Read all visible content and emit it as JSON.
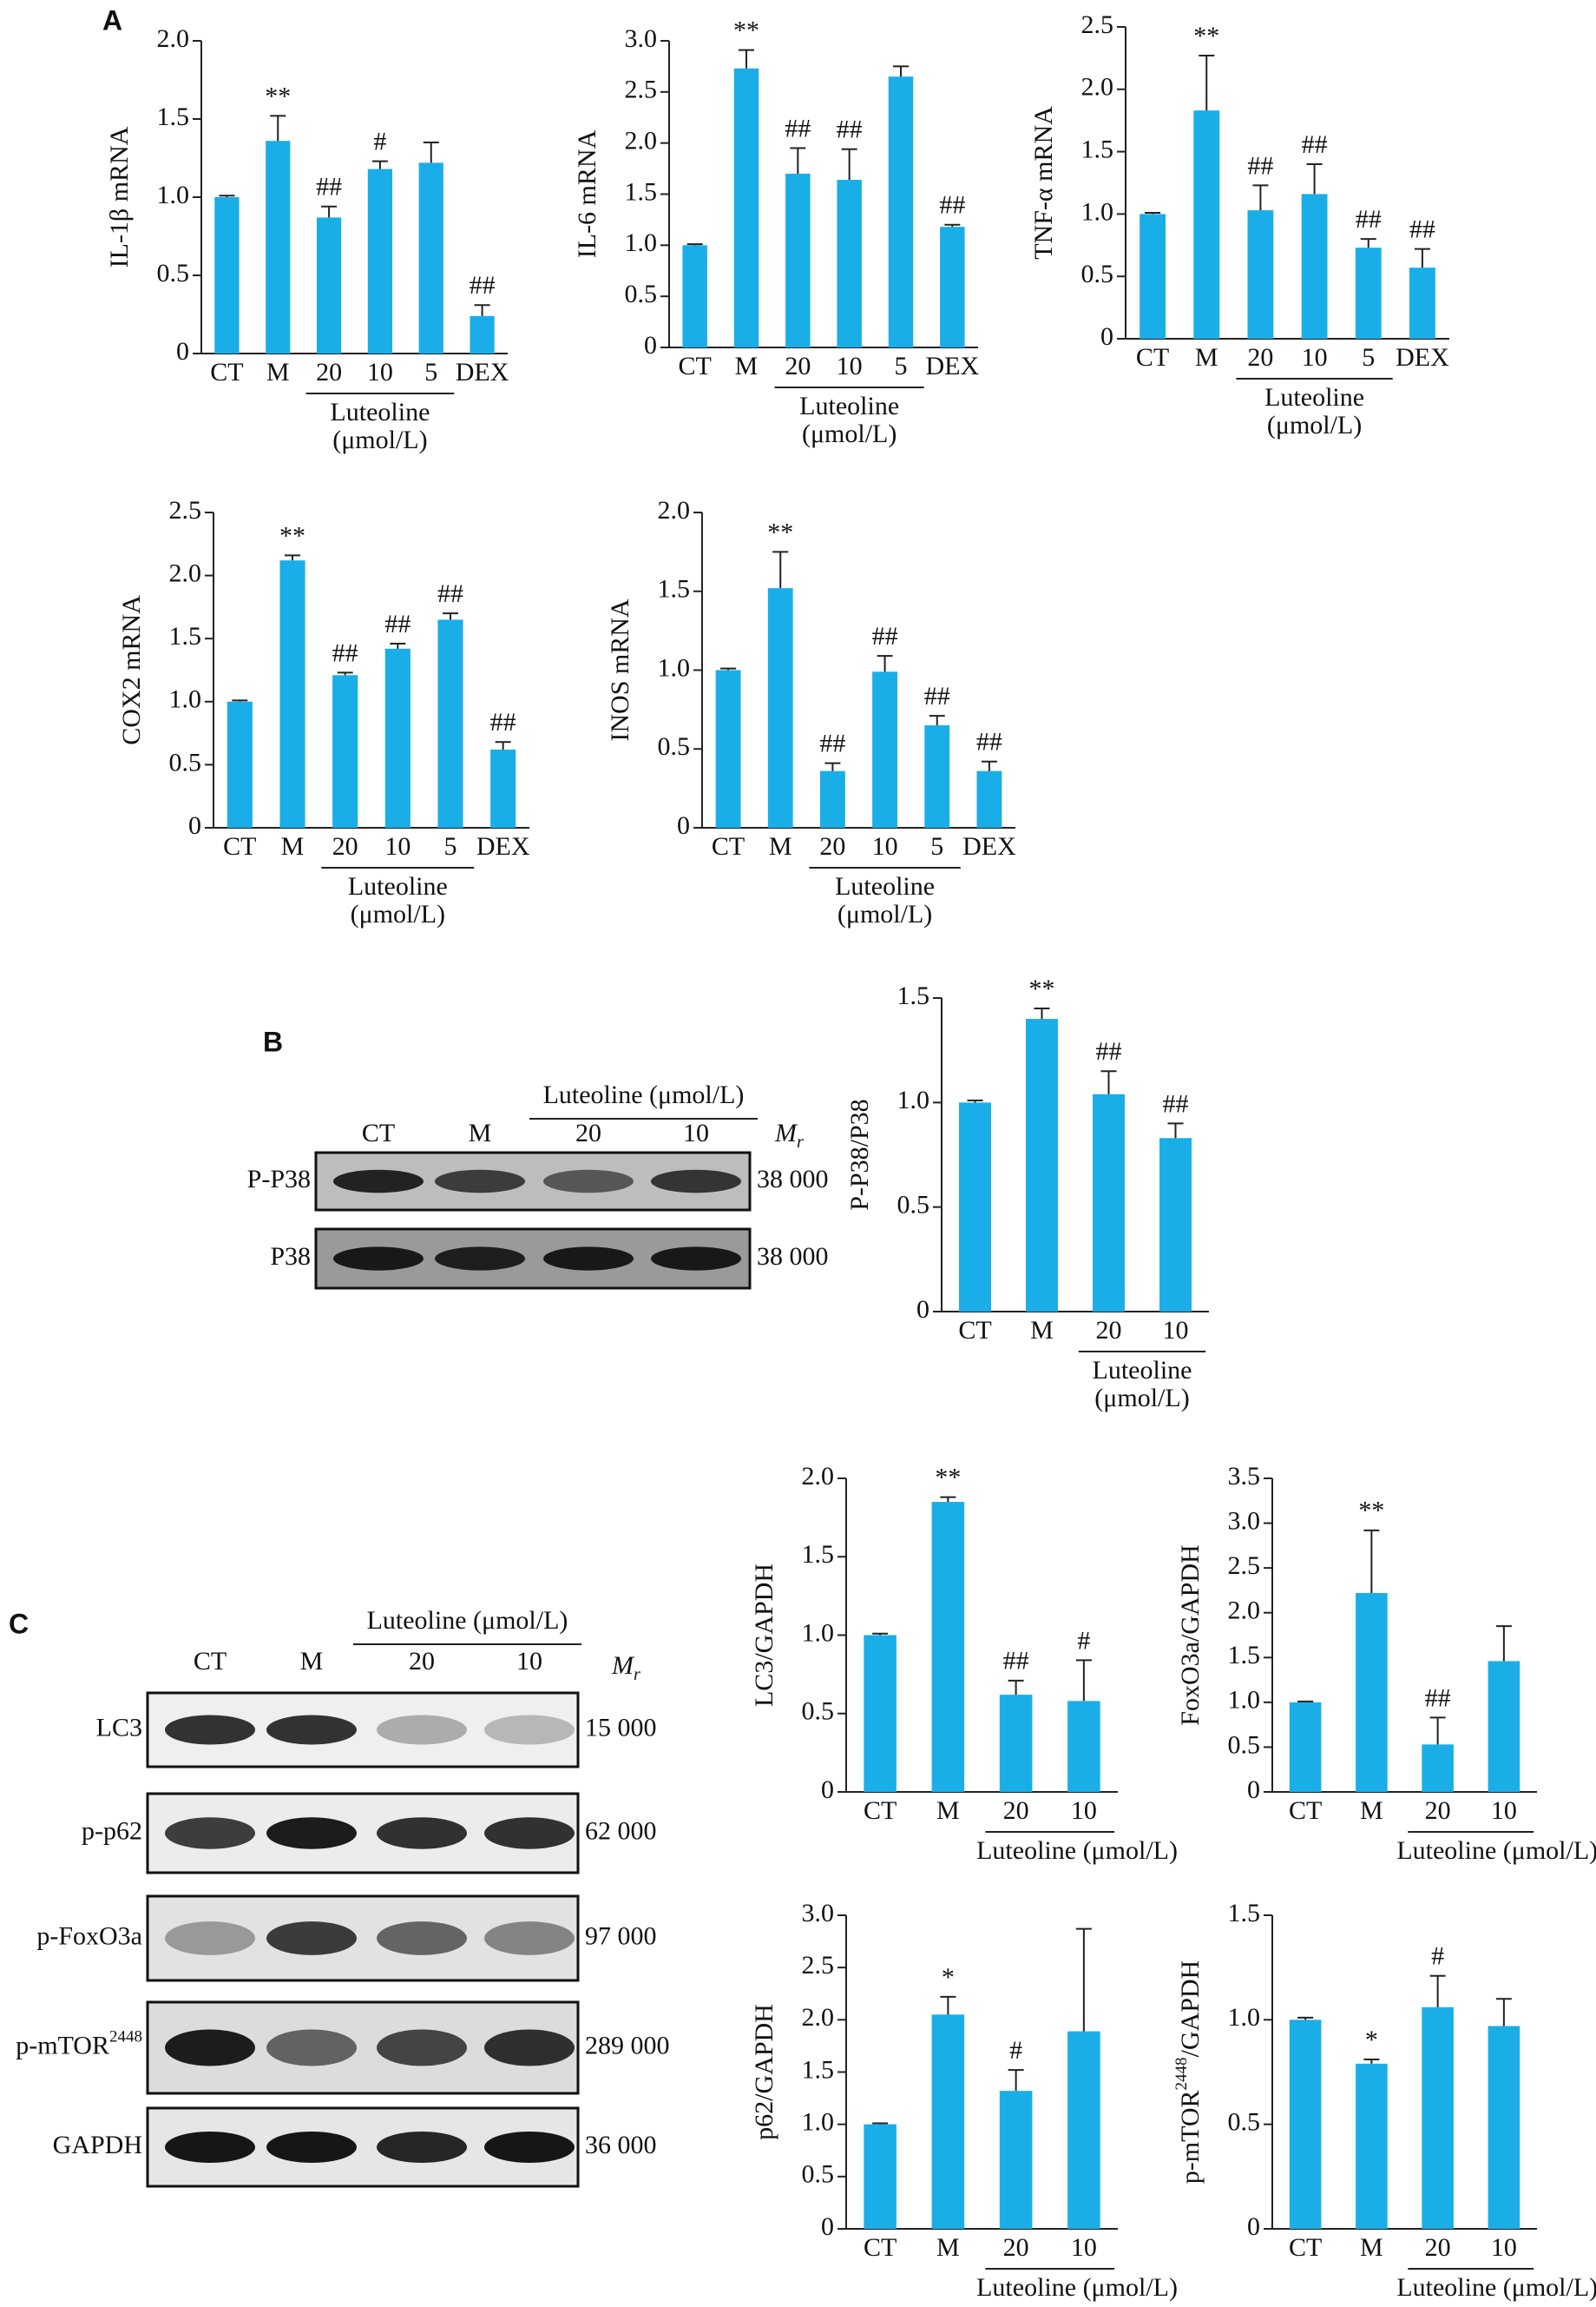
{
  "panels": [
    "A",
    "B",
    "C"
  ],
  "blots": [
    {
      "header": "Luteoline (μmol/L)",
      "lanes": [
        "CT",
        "M",
        "20",
        "10"
      ],
      "mr": "M",
      "mr_sub": "r",
      "rows": [
        {
          "label": "P-P38",
          "mw": "38 000"
        },
        {
          "label": "P38",
          "mw": "38 000"
        }
      ]
    },
    {
      "header": "Luteoline (μmol/L)",
      "lanes": [
        "CT",
        "M",
        "20",
        "10"
      ],
      "mr": "M",
      "mr_sub": "r",
      "rows": [
        {
          "label": "LC3",
          "mw": "15 000"
        },
        {
          "label": "p-p62",
          "mw": "62 000"
        },
        {
          "label": "p-FoxO3a",
          "mw": "97 000"
        },
        {
          "label": "p-mTOR",
          "sup": "2448",
          "mw": "289 000"
        },
        {
          "label": "GAPDH",
          "mw": "36 000"
        }
      ]
    }
  ],
  "chart_data": [
    {
      "type": "bar",
      "ylabel": "IL-1β mRNA",
      "color": "#1aaee8",
      "categories": [
        "CT",
        "M",
        "20",
        "10",
        "5",
        "DEX"
      ],
      "values": [
        1.0,
        1.36,
        0.87,
        1.18,
        1.22,
        0.24
      ],
      "errors": [
        0.01,
        0.16,
        0.07,
        0.05,
        0.13,
        0.07
      ],
      "markers": [
        null,
        "**",
        "##",
        "#",
        null,
        "##"
      ],
      "group_label": [
        "Luteoline",
        "(μmol/L)"
      ],
      "ylim": [
        0,
        2
      ],
      "yticks": [
        0,
        0.5,
        {
          "value": 1,
          "label": "1.0"
        },
        1.5,
        {
          "value": 2,
          "label": "2.0"
        }
      ]
    },
    {
      "type": "bar",
      "ylabel": "IL-6 mRNA",
      "color": "#1aaee8",
      "categories": [
        "CT",
        "M",
        "20",
        "10",
        "5",
        "DEX"
      ],
      "values": [
        1.0,
        2.73,
        1.7,
        1.64,
        2.65,
        1.18
      ],
      "errors": [
        0.01,
        0.18,
        0.25,
        0.3,
        0.1,
        0.02
      ],
      "markers": [
        null,
        "**",
        "##",
        "##",
        null,
        "##"
      ],
      "group_label": [
        "Luteoline",
        "(μmol/L)"
      ],
      "ylim": [
        0,
        3
      ],
      "yticks": [
        0,
        0.5,
        {
          "value": 1,
          "label": "1.0"
        },
        1.5,
        {
          "value": 2,
          "label": "2.0"
        },
        2.5,
        {
          "value": 3,
          "label": "3.0"
        }
      ]
    },
    {
      "type": "bar",
      "ylabel": "TNF-α mRNA",
      "color": "#1aaee8",
      "categories": [
        "CT",
        "M",
        "20",
        "10",
        "5",
        "DEX"
      ],
      "values": [
        1.0,
        1.83,
        1.03,
        1.16,
        0.73,
        0.57
      ],
      "errors": [
        0.01,
        0.44,
        0.2,
        0.24,
        0.07,
        0.15
      ],
      "markers": [
        null,
        "**",
        "##",
        "##",
        "##",
        "##"
      ],
      "group_label": [
        "Luteoline",
        "(μmol/L)"
      ],
      "ylim": [
        0,
        2.5
      ],
      "yticks": [
        0,
        0.5,
        {
          "value": 1,
          "label": "1.0"
        },
        1.5,
        {
          "value": 2,
          "label": "2.0"
        },
        2.5
      ]
    },
    {
      "type": "bar",
      "ylabel": "COX2 mRNA",
      "color": "#1aaee8",
      "categories": [
        "CT",
        "M",
        "20",
        "10",
        "5",
        "DEX"
      ],
      "values": [
        1.0,
        2.12,
        1.21,
        1.42,
        1.65,
        0.62
      ],
      "errors": [
        0.01,
        0.04,
        0.02,
        0.04,
        0.05,
        0.06
      ],
      "markers": [
        null,
        "**",
        "##",
        "##",
        "##",
        "##"
      ],
      "group_label": [
        "Luteoline",
        "(μmol/L)"
      ],
      "ylim": [
        0,
        2.5
      ],
      "yticks": [
        0,
        0.5,
        {
          "value": 1,
          "label": "1.0"
        },
        1.5,
        {
          "value": 2,
          "label": "2.0"
        },
        2.5
      ]
    },
    {
      "type": "bar",
      "ylabel": "INOS mRNA",
      "color": "#1aaee8",
      "categories": [
        "CT",
        "M",
        "20",
        "10",
        "5",
        "DEX"
      ],
      "values": [
        1.0,
        1.52,
        0.36,
        0.99,
        0.65,
        0.36
      ],
      "errors": [
        0.01,
        0.23,
        0.05,
        0.1,
        0.06,
        0.06
      ],
      "markers": [
        null,
        "**",
        "##",
        "##",
        "##",
        "##"
      ],
      "group_label": [
        "Luteoline",
        "(μmol/L)"
      ],
      "ylim": [
        0,
        2
      ],
      "yticks": [
        0,
        0.5,
        {
          "value": 1,
          "label": "1.0"
        },
        1.5,
        {
          "value": 2,
          "label": "2.0"
        }
      ]
    },
    {
      "type": "bar",
      "ylabel": "P-P38/P38",
      "color": "#1aaee8",
      "categories": [
        "CT",
        "M",
        "20",
        "10"
      ],
      "values": [
        1.0,
        1.4,
        1.04,
        0.83
      ],
      "errors": [
        0.01,
        0.05,
        0.11,
        0.07
      ],
      "markers": [
        null,
        "**",
        "##",
        "##"
      ],
      "group_label": [
        "Luteoline",
        "(μmol/L)"
      ],
      "ylim": [
        0,
        1.5
      ],
      "yticks": [
        0,
        0.5,
        {
          "value": 1,
          "label": "1.0"
        },
        1.5
      ]
    },
    {
      "type": "bar",
      "ylabel": "LC3/GAPDH",
      "color": "#1aaee8",
      "categories": [
        "CT",
        "M",
        "20",
        "10"
      ],
      "values": [
        1.0,
        1.85,
        0.62,
        0.58
      ],
      "errors": [
        0.01,
        0.03,
        0.09,
        0.26
      ],
      "markers": [
        null,
        "**",
        "##",
        "#"
      ],
      "group_label": [
        "Luteoline (μmol/L)"
      ],
      "ylim": [
        0,
        2
      ],
      "yticks": [
        0,
        0.5,
        {
          "value": 1,
          "label": "1.0"
        },
        1.5,
        {
          "value": 2,
          "label": "2.0"
        }
      ]
    },
    {
      "type": "bar",
      "ylabel": "FoxO3a/GAPDH",
      "color": "#1aaee8",
      "categories": [
        "CT",
        "M",
        "20",
        "10"
      ],
      "values": [
        1.0,
        2.22,
        0.53,
        1.46
      ],
      "errors": [
        0.01,
        0.7,
        0.3,
        0.39
      ],
      "markers": [
        null,
        "**",
        "##",
        null
      ],
      "group_label": [
        "Luteoline (μmol/L)"
      ],
      "ylim": [
        0,
        3.5
      ],
      "yticks": [
        0,
        0.5,
        {
          "value": 1,
          "label": "1.0"
        },
        1.5,
        {
          "value": 2,
          "label": "2.0"
        },
        2.5,
        {
          "value": 3,
          "label": "3.0"
        },
        3.5
      ]
    },
    {
      "type": "bar",
      "ylabel": "p62/GAPDH",
      "color": "#1aaee8",
      "categories": [
        "CT",
        "M",
        "20",
        "10"
      ],
      "values": [
        1.0,
        2.05,
        1.32,
        1.89
      ],
      "errors": [
        0.01,
        0.17,
        0.2,
        0.98
      ],
      "markers": [
        null,
        "*",
        "#",
        null
      ],
      "group_label": [
        "Luteoline (μmol/L)"
      ],
      "ylim": [
        0,
        3
      ],
      "yticks": [
        0,
        0.5,
        {
          "value": 1,
          "label": "1.0"
        },
        1.5,
        {
          "value": 2,
          "label": "2.0"
        },
        2.5,
        {
          "value": 3,
          "label": "3.0"
        }
      ]
    },
    {
      "type": "bar",
      "ylabel": {
        "text": "p-mTOR",
        "sup": "2448",
        "after": "/GAPDH"
      },
      "color": "#1aaee8",
      "categories": [
        "CT",
        "M",
        "20",
        "10"
      ],
      "values": [
        1.0,
        0.79,
        1.06,
        0.97
      ],
      "errors": [
        0.01,
        0.02,
        0.15,
        0.13
      ],
      "markers": [
        null,
        "*",
        "#",
        null
      ],
      "group_label": [
        "Luteoline (μmol/L)"
      ],
      "ylim": [
        0,
        1.5
      ],
      "yticks": [
        0,
        0.5,
        {
          "value": 1,
          "label": "1.0"
        },
        1.5
      ]
    }
  ]
}
